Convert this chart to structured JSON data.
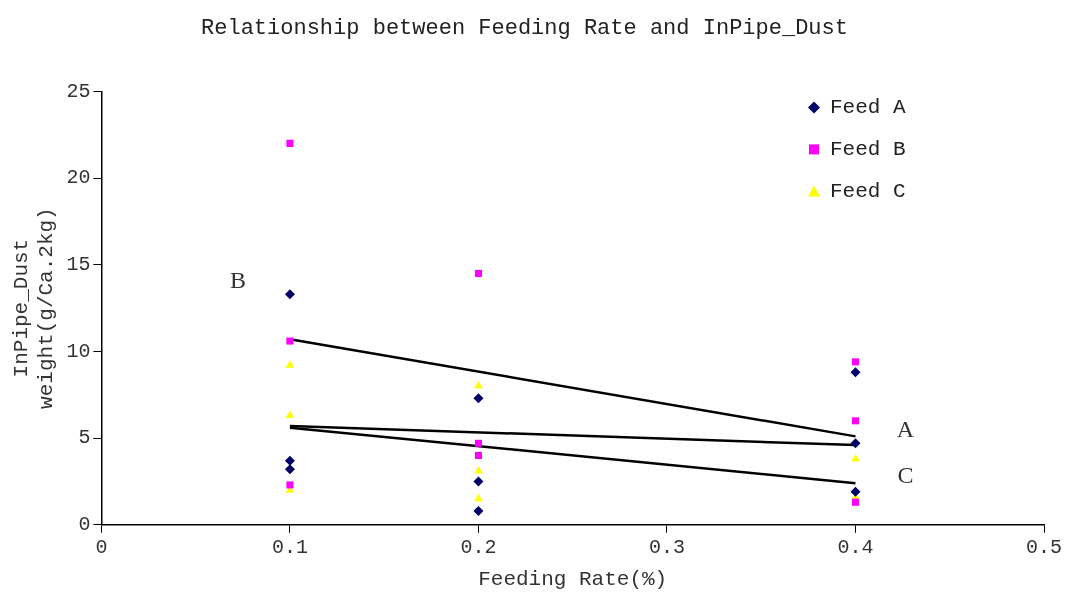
{
  "chart_data": {
    "type": "scatter",
    "title": "Relationship between Feeding Rate and InPipe_Dust",
    "xlabel": "Feeding Rate(%)",
    "ylabel": "InPipe_Dust\nweight(g/Ca.2kg)",
    "xlim": [
      0,
      0.5
    ],
    "xticks": [
      0,
      0.1,
      0.2,
      0.3,
      0.4,
      0.5
    ],
    "ylim": [
      0,
      25
    ],
    "yticks": [
      0,
      5,
      10,
      15,
      20,
      25
    ],
    "grid": false,
    "legend": "top right",
    "series": [
      {
        "name": "Feed A",
        "color": "#000066",
        "marker": "diamond",
        "x": [
          0.1,
          0.1,
          0.1,
          0.2,
          0.2,
          0.2,
          0.4,
          0.4,
          0.4
        ],
        "values": [
          13.3,
          3.7,
          3.2,
          7.3,
          2.5,
          0.8,
          8.8,
          4.7,
          1.9
        ]
      },
      {
        "name": "Feed B",
        "color": "#ff00ff",
        "marker": "square",
        "x": [
          0.1,
          0.1,
          0.1,
          0.2,
          0.2,
          0.2,
          0.4,
          0.4,
          0.4
        ],
        "values": [
          22,
          10.6,
          2.3,
          14.5,
          4.7,
          4.0,
          9.4,
          6.0,
          1.3
        ]
      },
      {
        "name": "Feed C",
        "color": "#ffff00",
        "marker": "triangle",
        "x": [
          0.1,
          0.1,
          0.1,
          0.2,
          0.2,
          0.2,
          0.4,
          0.4
        ],
        "values": [
          9.2,
          6.3,
          2.0,
          8.0,
          3.1,
          1.5,
          3.8,
          1.6
        ]
      },
      {
        "type": "line",
        "color": "#000000",
        "marker": "none",
        "x": [
          0.1,
          0.4
        ],
        "values": [
          10.7,
          5.1
        ]
      },
      {
        "type": "line",
        "color": "#000000",
        "marker": "none",
        "x": [
          0.1,
          0.4
        ],
        "values": [
          5.7,
          4.6
        ]
      },
      {
        "type": "line",
        "color": "#000000",
        "marker": "none",
        "x": [
          0.1,
          0.4
        ],
        "values": [
          5.6,
          2.4
        ]
      }
    ],
    "annotations": [
      "B",
      "A",
      "C"
    ]
  }
}
